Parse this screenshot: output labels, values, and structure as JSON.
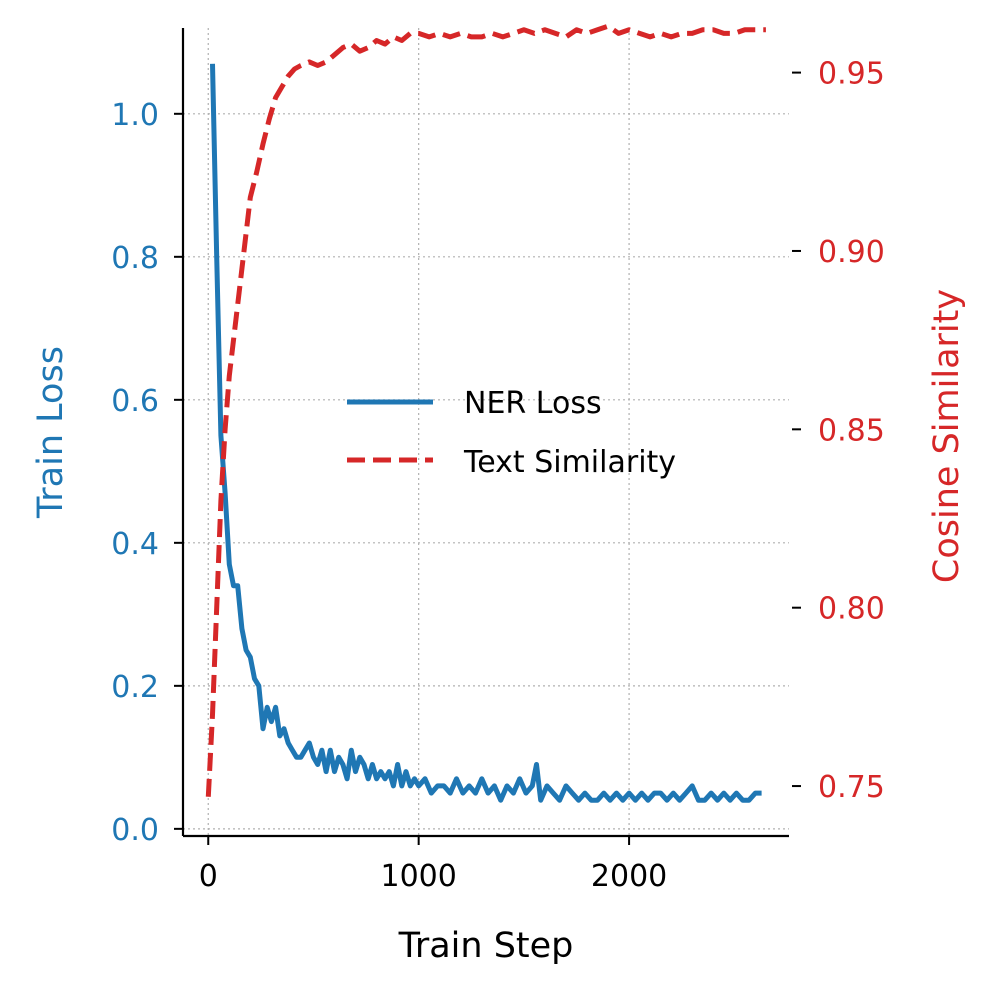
{
  "chart_data": {
    "type": "line",
    "xlabel": "Train Step",
    "ylabel_left": "Train Loss",
    "ylabel_right": "Cosine Similarity",
    "xlim": [
      -120,
      2760
    ],
    "ylim_left": [
      -0.01,
      1.12
    ],
    "ylim_right": [
      0.736,
      0.9625
    ],
    "x_ticks": [
      0,
      1000,
      2000
    ],
    "x_tick_labels": [
      "0",
      "1000",
      "2000"
    ],
    "y_left_ticks": [
      0.0,
      0.2,
      0.4,
      0.6,
      0.8,
      1.0
    ],
    "y_left_tick_labels": [
      "0.0",
      "0.2",
      "0.4",
      "0.6",
      "0.8",
      "1.0"
    ],
    "y_right_ticks": [
      0.75,
      0.8,
      0.85,
      0.9,
      0.95
    ],
    "y_right_tick_labels": [
      "0.75",
      "0.80",
      "0.85",
      "0.90",
      "0.95"
    ],
    "grid": true,
    "legend_position": "center-right",
    "colors": {
      "left": "#1f77b4",
      "right": "#d62728",
      "axis": "#000000",
      "grid": "#b0b0b0"
    },
    "series": [
      {
        "name": "NER Loss",
        "axis": "left",
        "color": "#1f77b4",
        "style": "solid",
        "x": [
          20,
          40,
          60,
          80,
          100,
          120,
          140,
          160,
          180,
          200,
          220,
          240,
          260,
          280,
          300,
          320,
          340,
          360,
          380,
          400,
          420,
          440,
          460,
          480,
          500,
          520,
          540,
          560,
          580,
          600,
          620,
          640,
          660,
          680,
          700,
          720,
          740,
          760,
          780,
          800,
          820,
          840,
          860,
          880,
          900,
          920,
          940,
          960,
          980,
          1000,
          1030,
          1060,
          1090,
          1120,
          1150,
          1180,
          1210,
          1240,
          1270,
          1300,
          1330,
          1360,
          1390,
          1420,
          1450,
          1480,
          1510,
          1540,
          1560,
          1580,
          1610,
          1640,
          1670,
          1700,
          1730,
          1760,
          1790,
          1820,
          1850,
          1880,
          1910,
          1940,
          1970,
          2000,
          2030,
          2060,
          2090,
          2120,
          2150,
          2180,
          2210,
          2240,
          2270,
          2300,
          2330,
          2360,
          2390,
          2420,
          2450,
          2480,
          2510,
          2540,
          2570,
          2600,
          2630
        ],
        "values": [
          1.07,
          0.8,
          0.55,
          0.47,
          0.37,
          0.34,
          0.34,
          0.28,
          0.25,
          0.24,
          0.21,
          0.2,
          0.14,
          0.17,
          0.15,
          0.17,
          0.13,
          0.14,
          0.12,
          0.11,
          0.1,
          0.1,
          0.11,
          0.12,
          0.1,
          0.09,
          0.11,
          0.08,
          0.11,
          0.08,
          0.1,
          0.09,
          0.07,
          0.11,
          0.08,
          0.1,
          0.09,
          0.07,
          0.09,
          0.07,
          0.08,
          0.07,
          0.08,
          0.06,
          0.09,
          0.06,
          0.08,
          0.06,
          0.07,
          0.06,
          0.07,
          0.05,
          0.06,
          0.06,
          0.05,
          0.07,
          0.05,
          0.06,
          0.05,
          0.07,
          0.05,
          0.06,
          0.04,
          0.06,
          0.05,
          0.07,
          0.05,
          0.06,
          0.09,
          0.04,
          0.06,
          0.05,
          0.04,
          0.06,
          0.05,
          0.04,
          0.05,
          0.04,
          0.04,
          0.05,
          0.04,
          0.05,
          0.04,
          0.05,
          0.04,
          0.05,
          0.04,
          0.05,
          0.05,
          0.04,
          0.05,
          0.04,
          0.05,
          0.06,
          0.04,
          0.04,
          0.05,
          0.04,
          0.05,
          0.04,
          0.05,
          0.04,
          0.04,
          0.05,
          0.05
        ]
      },
      {
        "name": "Text Similarity",
        "axis": "right",
        "color": "#d62728",
        "style": "dashed",
        "x": [
          0,
          20,
          40,
          60,
          80,
          100,
          120,
          140,
          160,
          180,
          200,
          230,
          260,
          290,
          320,
          350,
          380,
          410,
          440,
          480,
          520,
          560,
          600,
          640,
          680,
          720,
          760,
          800,
          840,
          880,
          920,
          960,
          1000,
          1050,
          1100,
          1150,
          1200,
          1250,
          1300,
          1350,
          1400,
          1450,
          1500,
          1550,
          1600,
          1650,
          1700,
          1750,
          1800,
          1850,
          1900,
          1950,
          2000,
          2050,
          2100,
          2150,
          2200,
          2250,
          2300,
          2350,
          2400,
          2450,
          2500,
          2550,
          2600,
          2650
        ],
        "values": [
          0.747,
          0.77,
          0.8,
          0.83,
          0.85,
          0.865,
          0.875,
          0.885,
          0.895,
          0.905,
          0.915,
          0.922,
          0.93,
          0.937,
          0.943,
          0.946,
          0.949,
          0.951,
          0.952,
          0.953,
          0.952,
          0.953,
          0.955,
          0.957,
          0.958,
          0.956,
          0.957,
          0.959,
          0.958,
          0.96,
          0.959,
          0.961,
          0.961,
          0.96,
          0.961,
          0.96,
          0.961,
          0.96,
          0.96,
          0.961,
          0.96,
          0.961,
          0.962,
          0.961,
          0.962,
          0.961,
          0.96,
          0.962,
          0.961,
          0.962,
          0.963,
          0.961,
          0.962,
          0.961,
          0.96,
          0.961,
          0.96,
          0.961,
          0.961,
          0.962,
          0.962,
          0.961,
          0.961,
          0.962,
          0.962,
          0.962
        ]
      }
    ]
  }
}
